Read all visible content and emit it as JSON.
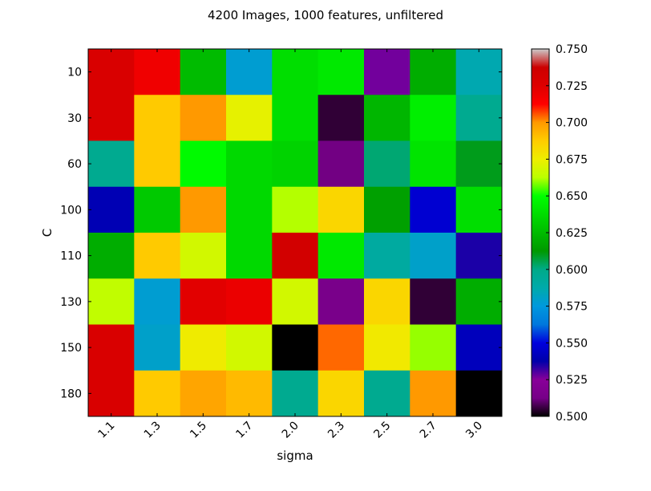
{
  "chart_data": {
    "type": "heatmap",
    "title": "4200 Images, 1000 features, unfiltered",
    "xlabel": "sigma",
    "ylabel": "C",
    "x_categories": [
      "1.1",
      "1.3",
      "1.5",
      "1.7",
      "2.0",
      "2.3",
      "2.5",
      "2.7",
      "3.0"
    ],
    "y_categories": [
      "10",
      "30",
      "60",
      "100",
      "110",
      "130",
      "150",
      "180"
    ],
    "values": [
      [
        0.728,
        0.718,
        0.625,
        0.578,
        0.638,
        0.642,
        0.527,
        0.62,
        0.586
      ],
      [
        0.728,
        0.688,
        0.7,
        0.673,
        0.638,
        0.505,
        0.623,
        0.644,
        0.597
      ],
      [
        0.597,
        0.688,
        0.648,
        0.636,
        0.634,
        0.512,
        0.602,
        0.64,
        0.61
      ],
      [
        0.54,
        0.63,
        0.7,
        0.636,
        0.662,
        0.684,
        0.615,
        0.547,
        0.638
      ],
      [
        0.62,
        0.688,
        0.668,
        0.636,
        0.733,
        0.642,
        0.591,
        0.58,
        0.535
      ],
      [
        0.664,
        0.578,
        0.723,
        0.72,
        0.668,
        0.514,
        0.684,
        0.505,
        0.62
      ],
      [
        0.728,
        0.58,
        0.676,
        0.668,
        0.5,
        0.704,
        0.677,
        0.66,
        0.542
      ],
      [
        0.728,
        0.688,
        0.697,
        0.692,
        0.597,
        0.684,
        0.597,
        0.7,
        0.5
      ]
    ],
    "colorbar": {
      "colormap": "nipy_spectral",
      "vmin": 0.5,
      "vmax": 0.75,
      "ticks": [
        "0.500",
        "0.525",
        "0.550",
        "0.575",
        "0.600",
        "0.625",
        "0.650",
        "0.675",
        "0.700",
        "0.725",
        "0.750"
      ]
    }
  }
}
